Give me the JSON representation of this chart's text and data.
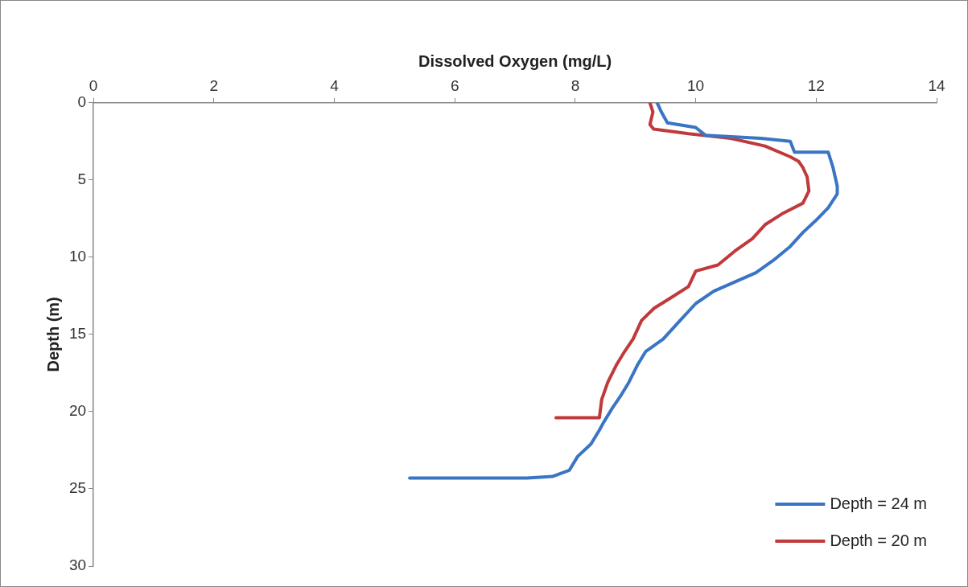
{
  "chart_data": {
    "type": "line",
    "xlabel": "Dissolved Oxygen (mg/L)",
    "ylabel": "Depth (m)",
    "xlim": [
      0,
      14
    ],
    "xticks": [
      0,
      2,
      4,
      6,
      8,
      10,
      12,
      14
    ],
    "ylim": [
      30,
      0
    ],
    "yticks": [
      0,
      5,
      10,
      15,
      20,
      25,
      30
    ],
    "grid": false,
    "legend": "bottom right",
    "marker": "none",
    "line_style": "solid",
    "series": [
      {
        "name": "Depth = 24 m",
        "color": "#3a75c4",
        "x": [
          9.36,
          9.43,
          9.53,
          10.0,
          10.16,
          11.08,
          11.57,
          11.64,
          12.2,
          12.28,
          12.35,
          12.35,
          12.2,
          12.0,
          11.78,
          11.57,
          11.29,
          11.0,
          10.65,
          10.3,
          10.0,
          9.74,
          9.46,
          9.17,
          9.03,
          8.89,
          8.75,
          8.61,
          8.47,
          8.4,
          8.26,
          8.04,
          7.9,
          7.62,
          7.2,
          5.25
        ],
        "values": [
          0,
          0.6,
          1.3,
          1.6,
          2.1,
          2.3,
          2.5,
          3.2,
          3.2,
          4.2,
          5.4,
          5.9,
          6.8,
          7.6,
          8.4,
          9.3,
          10.2,
          11.0,
          11.6,
          12.2,
          13.0,
          14.1,
          15.3,
          16.1,
          17.0,
          18.1,
          19.0,
          19.8,
          20.7,
          21.2,
          22.1,
          22.9,
          23.8,
          24.2,
          24.3,
          24.3
        ]
      },
      {
        "name": "Depth = 20 m",
        "color": "#c0393b",
        "x": [
          9.24,
          9.29,
          9.24,
          9.3,
          9.88,
          10.58,
          11.15,
          11.57,
          11.71,
          11.78,
          11.85,
          11.88,
          11.78,
          11.43,
          11.15,
          10.94,
          10.65,
          10.37,
          10.0,
          9.88,
          9.6,
          9.31,
          9.1,
          8.96,
          8.82,
          8.68,
          8.54,
          8.44,
          8.4,
          7.68
        ],
        "values": [
          0,
          0.6,
          1.4,
          1.7,
          2.0,
          2.3,
          2.8,
          3.5,
          3.8,
          4.2,
          4.8,
          5.7,
          6.5,
          7.2,
          7.9,
          8.8,
          9.6,
          10.5,
          10.9,
          11.9,
          12.6,
          13.3,
          14.1,
          15.3,
          16.1,
          17.0,
          18.1,
          19.2,
          20.4,
          20.4
        ]
      }
    ]
  }
}
